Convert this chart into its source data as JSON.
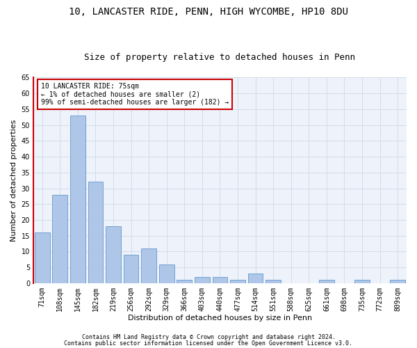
{
  "title1": "10, LANCASTER RIDE, PENN, HIGH WYCOMBE, HP10 8DU",
  "title2": "Size of property relative to detached houses in Penn",
  "xlabel": "Distribution of detached houses by size in Penn",
  "ylabel": "Number of detached properties",
  "categories": [
    "71sqm",
    "108sqm",
    "145sqm",
    "182sqm",
    "219sqm",
    "256sqm",
    "292sqm",
    "329sqm",
    "366sqm",
    "403sqm",
    "440sqm",
    "477sqm",
    "514sqm",
    "551sqm",
    "588sqm",
    "625sqm",
    "661sqm",
    "698sqm",
    "735sqm",
    "772sqm",
    "809sqm"
  ],
  "values": [
    16,
    28,
    53,
    32,
    18,
    9,
    11,
    6,
    1,
    2,
    2,
    1,
    3,
    1,
    0,
    0,
    1,
    0,
    1,
    0,
    1
  ],
  "bar_color": "#aec6e8",
  "bar_edge_color": "#6699cc",
  "highlight_color": "#cc0000",
  "ylim": [
    0,
    65
  ],
  "yticks": [
    0,
    5,
    10,
    15,
    20,
    25,
    30,
    35,
    40,
    45,
    50,
    55,
    60,
    65
  ],
  "annotation_line1": "10 LANCASTER RIDE: 75sqm",
  "annotation_line2": "← 1% of detached houses are smaller (2)",
  "annotation_line3": "99% of semi-detached houses are larger (182) →",
  "footer1": "Contains HM Land Registry data © Crown copyright and database right 2024.",
  "footer2": "Contains public sector information licensed under the Open Government Licence v3.0.",
  "grid_color": "#c8d4e8",
  "background_color": "#eef2fa",
  "title1_fontsize": 10,
  "title2_fontsize": 9,
  "xlabel_fontsize": 8,
  "ylabel_fontsize": 8,
  "tick_fontsize": 7,
  "annotation_fontsize": 7,
  "footer_fontsize": 6
}
